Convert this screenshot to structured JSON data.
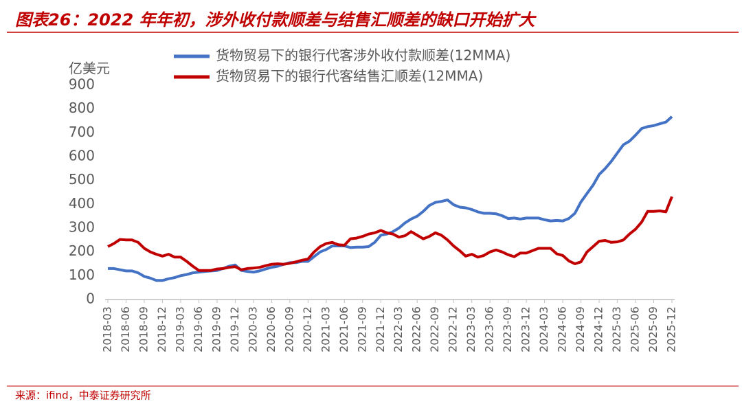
{
  "chart_data": {
    "type": "line",
    "title": "图表26：2022 年年初，涉外收付款顺差与结售汇顺差的缺口开始扩大",
    "y_label": "亿美元",
    "source": "来源：ifind，中泰证券研究所",
    "categories": [
      "2018-03",
      null,
      null,
      "2018-06",
      null,
      null,
      "2018-09",
      null,
      null,
      "2018-12",
      null,
      null,
      "2019-03",
      null,
      null,
      "2019-06",
      null,
      null,
      "2019-09",
      null,
      null,
      "2019-12",
      null,
      null,
      "2020-03",
      null,
      null,
      "2020-06",
      null,
      null,
      "2020-09",
      null,
      null,
      "2020-12",
      null,
      null,
      "2021-03",
      null,
      null,
      "2021-06",
      null,
      null,
      "2021-09",
      null,
      null,
      "2021-12",
      null,
      null,
      "2022-03",
      null,
      null,
      "2022-06",
      null,
      null,
      "2022-09",
      null,
      null,
      "2022-12",
      null,
      null,
      "2023-03",
      null,
      null,
      "2023-06",
      null,
      null,
      "2023-09",
      null,
      null,
      "2023-12",
      null,
      null,
      "2024-03",
      null,
      null,
      "2024-06",
      null,
      null,
      "2024-09",
      null,
      null,
      "2024-12",
      null,
      null,
      "2025-03",
      null,
      null,
      "2025-06",
      null,
      null,
      "2025-09",
      null,
      null,
      "2025-12"
    ],
    "series": [
      {
        "name": "货物贸易下的银行代客涉外收付款顺差(12MMA)",
        "color": "#4472c4",
        "values": [
          130,
          130,
          125,
          120,
          120,
          112,
          97,
          90,
          80,
          80,
          87,
          92,
          100,
          105,
          112,
          115,
          118,
          120,
          122,
          130,
          140,
          145,
          122,
          118,
          115,
          120,
          128,
          135,
          140,
          148,
          155,
          155,
          160,
          160,
          180,
          200,
          210,
          225,
          225,
          225,
          218,
          220,
          220,
          222,
          240,
          270,
          275,
          285,
          300,
          322,
          338,
          350,
          370,
          395,
          408,
          412,
          418,
          398,
          388,
          385,
          378,
          368,
          362,
          362,
          360,
          352,
          340,
          342,
          338,
          342,
          342,
          342,
          335,
          330,
          332,
          330,
          340,
          362,
          410,
          445,
          480,
          525,
          550,
          580,
          615,
          650,
          665,
          690,
          718,
          726,
          730,
          738,
          745,
          768
        ]
      },
      {
        "name": "货物贸易下的银行代客结售汇顺差(12MMA)",
        "color": "#c00000",
        "values": [
          222,
          235,
          252,
          250,
          250,
          240,
          215,
          200,
          190,
          182,
          190,
          178,
          178,
          160,
          140,
          122,
          122,
          122,
          128,
          130,
          135,
          138,
          125,
          130,
          132,
          135,
          142,
          148,
          150,
          148,
          152,
          158,
          165,
          170,
          200,
          222,
          235,
          240,
          230,
          228,
          255,
          258,
          265,
          275,
          280,
          290,
          280,
          275,
          262,
          268,
          285,
          270,
          255,
          265,
          280,
          270,
          250,
          225,
          205,
          182,
          190,
          178,
          185,
          200,
          208,
          200,
          188,
          180,
          195,
          195,
          205,
          215,
          215,
          215,
          192,
          185,
          162,
          150,
          158,
          200,
          222,
          245,
          248,
          240,
          242,
          250,
          275,
          295,
          325,
          370,
          370,
          372,
          368,
          432
        ]
      }
    ],
    "ylim": [
      0,
      900
    ],
    "yticks": [
      0,
      100,
      200,
      300,
      400,
      500,
      600,
      700,
      800,
      900
    ]
  }
}
